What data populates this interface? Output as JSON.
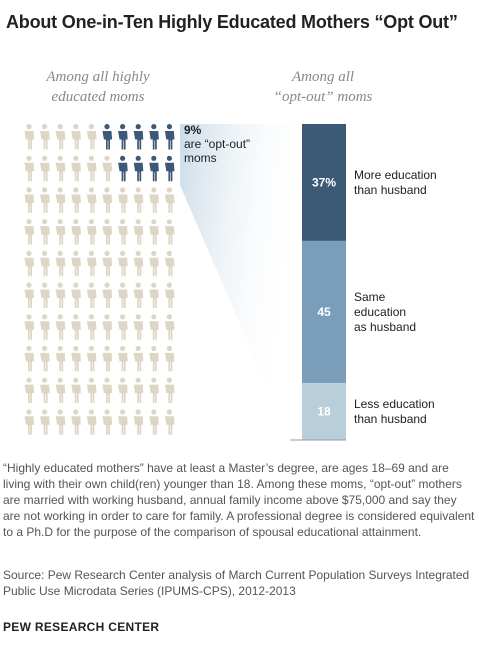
{
  "title": "About One-in-Ten Highly Educated Mothers “Opt Out”",
  "chart_data": [
    {
      "type": "pictograph",
      "heading": [
        "Among all highly",
        "educated moms"
      ],
      "total_icons": 100,
      "highlighted_icons": 9,
      "highlighted_value": "9%",
      "highlighted_label": [
        "are “opt-out”",
        "moms"
      ],
      "colors": {
        "highlight": "#3c5a75",
        "base": "#ddd6c4"
      }
    },
    {
      "type": "bar",
      "stacked": true,
      "heading": [
        "Among all",
        "“opt-out” moms"
      ],
      "segments": [
        {
          "value_label": "37%",
          "value": 37,
          "label": [
            "More education",
            "than husband"
          ],
          "color": "#3c5a75"
        },
        {
          "value_label": "45",
          "value": 45,
          "label": [
            "Same",
            "education",
            "as husband"
          ],
          "color": "#7a9eb9"
        },
        {
          "value_label": "18",
          "value": 18,
          "label": [
            "Less education",
            "than husband"
          ],
          "color": "#b9cedb"
        }
      ]
    }
  ],
  "note": "“Highly educated mothers” have at least a Master’s degree, are ages 18–69 and are living with their own child(ren) younger than 18. Among these moms, “opt-out” mothers are married with working husband, annual family income above $75,000 and say they are not working in order to care for family. A professional degree is considered equivalent to a Ph.D for the purpose of the comparison of spousal educational attainment.",
  "source": "Source: Pew Research Center analysis of March Current Population Surveys Integrated Public Use Microdata Series (IPUMS-CPS), 2012-2013",
  "credit": "PEW RESEARCH CENTER"
}
